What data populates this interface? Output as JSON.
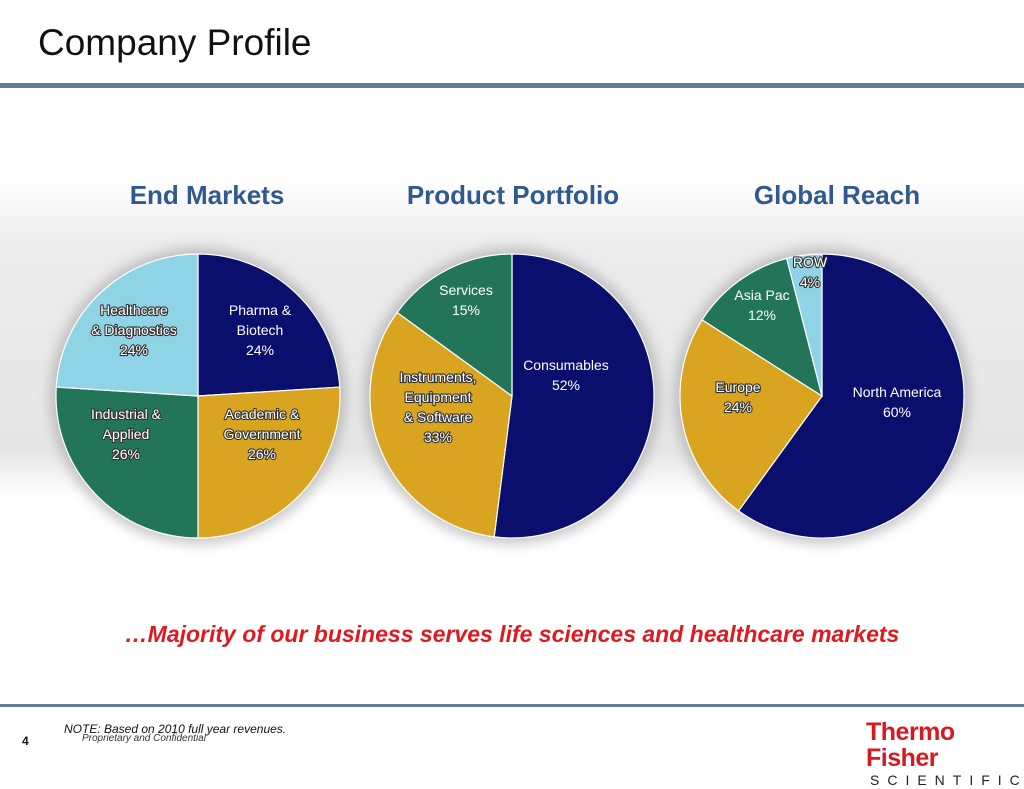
{
  "slide": {
    "title": "Company Profile",
    "tagline": "…Majority of our business serves life sciences and healthcare markets",
    "note": "NOTE:  Based on 2010 full year revenues.",
    "confidential": "Proprietary and Confidential",
    "page_number": "4",
    "logo": {
      "line1": "Thermo Fisher",
      "line2": "SCIENTIFIC"
    }
  },
  "colors": {
    "navy": "#0a0f6e",
    "gold": "#d9a420",
    "green": "#23755a",
    "light_blue": "#8ed3e6",
    "title_blue": "#2f5a8f",
    "tagline_red": "#e0191f",
    "rule": "#5f7f99"
  },
  "chart_data": [
    {
      "type": "pie",
      "title": "End Markets",
      "slices": [
        {
          "label": [
            "Pharma &",
            "Biotech",
            "24%"
          ],
          "value": 24,
          "color": "#0a0f6e",
          "text_color": "#ffffff",
          "outlined": false
        },
        {
          "label": [
            "Academic &",
            "Government",
            "26%"
          ],
          "value": 26,
          "color": "#d9a420",
          "text_color": "#ffffff",
          "outlined": true
        },
        {
          "label": [
            "Industrial &",
            "Applied",
            "26%"
          ],
          "value": 26,
          "color": "#23755a",
          "text_color": "#ffffff",
          "outlined": true
        },
        {
          "label": [
            "Healthcare",
            "& Diagnostics",
            "24%"
          ],
          "value": 24,
          "color": "#8ed3e6",
          "text_color": "#ffffff",
          "outlined": true
        }
      ]
    },
    {
      "type": "pie",
      "title": "Product Portfolio",
      "slices": [
        {
          "label": [
            "Consumables",
            "52%"
          ],
          "value": 52,
          "color": "#0a0f6e",
          "text_color": "#ffffff",
          "outlined": false
        },
        {
          "label": [
            "Instruments,",
            "Equipment",
            "& Software",
            "33%"
          ],
          "value": 33,
          "color": "#d9a420",
          "text_color": "#ffffff",
          "outlined": true
        },
        {
          "label": [
            "Services",
            "15%"
          ],
          "value": 15,
          "color": "#23755a",
          "text_color": "#ffffff",
          "outlined": false
        }
      ]
    },
    {
      "type": "pie",
      "title": "Global Reach",
      "slices": [
        {
          "label": [
            "North America",
            "60%"
          ],
          "value": 60,
          "color": "#0a0f6e",
          "text_color": "#ffffff",
          "outlined": false
        },
        {
          "label": [
            "Europe",
            "24%"
          ],
          "value": 24,
          "color": "#d9a420",
          "text_color": "#ffffff",
          "outlined": true
        },
        {
          "label": [
            "Asia Pac",
            "12%"
          ],
          "value": 12,
          "color": "#23755a",
          "text_color": "#ffffff",
          "outlined": false
        },
        {
          "label": [
            "ROW",
            "4%"
          ],
          "value": 4,
          "color": "#8ed3e6",
          "text_color": "#ffffff",
          "outlined": true
        }
      ]
    }
  ]
}
